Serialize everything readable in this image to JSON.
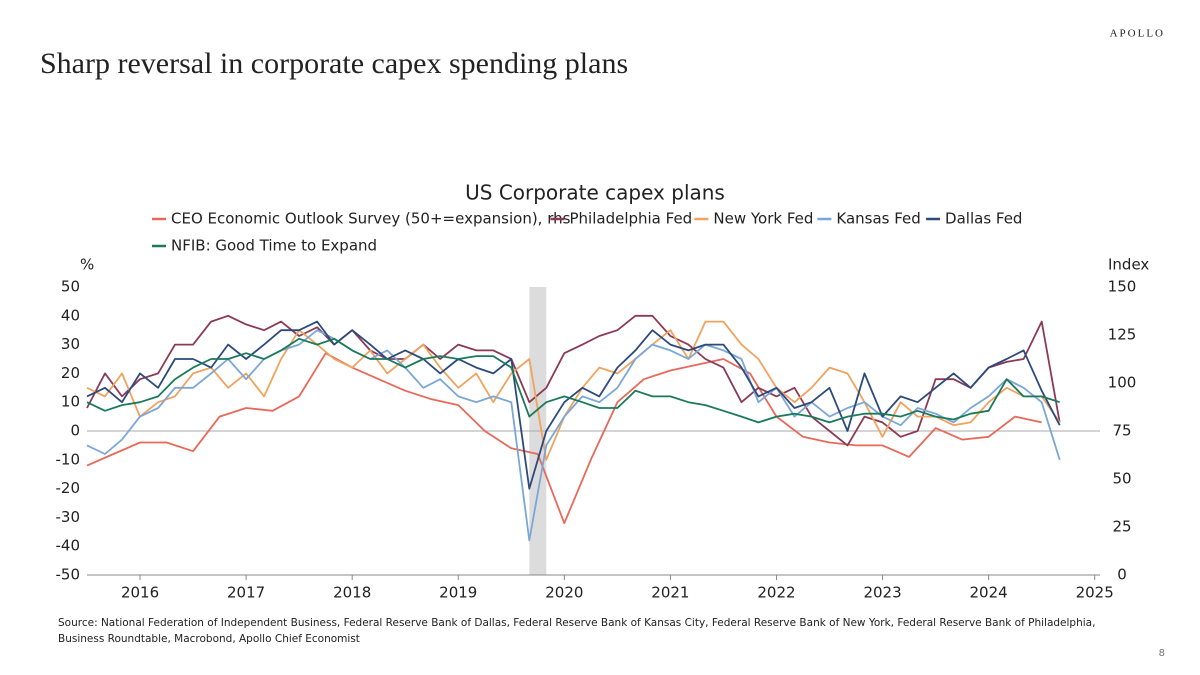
{
  "brand": "APOLLO",
  "page_title": "Sharp reversal in corporate capex spending plans",
  "source": "Source: National Federation of Independent Business, Federal Reserve Bank of Dallas, Federal Reserve Bank of Kansas City, Federal Reserve Bank of New York, Federal Reserve Bank of Philadelphia, Business Roundtable, Macrobond, Apollo Chief Economist",
  "page_number": "8",
  "chart_data": {
    "type": "line",
    "title": "US Corporate capex plans",
    "y_label": "%",
    "y2_label": "Index",
    "xlim": [
      2016,
      2025.55
    ],
    "xticks": [
      {
        "value": 2016.5,
        "label": "2016"
      },
      {
        "value": 2017.5,
        "label": "2017"
      },
      {
        "value": 2018.5,
        "label": "2018"
      },
      {
        "value": 2019.5,
        "label": "2019"
      },
      {
        "value": 2020.5,
        "label": "2020"
      },
      {
        "value": 2021.5,
        "label": "2021"
      },
      {
        "value": 2022.5,
        "label": "2022"
      },
      {
        "value": 2023.5,
        "label": "2023"
      },
      {
        "value": 2024.5,
        "label": "2024"
      },
      {
        "value": 2025.5,
        "label": "2025"
      }
    ],
    "ylim": [
      -50,
      50
    ],
    "yticks": [
      -50,
      -40,
      -30,
      -20,
      -10,
      0,
      10,
      20,
      30,
      40,
      50
    ],
    "y2lim": [
      0,
      150
    ],
    "y2ticks": [
      0,
      25,
      50,
      75,
      100,
      125,
      150
    ],
    "shaded_x": [
      2020.17,
      2020.33
    ],
    "x": [
      2016,
      2016.17,
      2016.33,
      2016.5,
      2016.67,
      2016.83,
      2017,
      2017.17,
      2017.33,
      2017.5,
      2017.67,
      2017.83,
      2018,
      2018.17,
      2018.33,
      2018.5,
      2018.67,
      2018.83,
      2019,
      2019.17,
      2019.33,
      2019.5,
      2019.67,
      2019.83,
      2020,
      2020.17,
      2020.33,
      2020.5,
      2020.67,
      2020.83,
      2021,
      2021.17,
      2021.33,
      2021.5,
      2021.67,
      2021.83,
      2022,
      2022.17,
      2022.33,
      2022.5,
      2022.67,
      2022.83,
      2023,
      2023.17,
      2023.33,
      2023.5,
      2023.67,
      2023.83,
      2024,
      2024.17,
      2024.33,
      2024.5,
      2024.67,
      2024.83,
      2025,
      2025.17
    ],
    "series": [
      {
        "name": "CEO Economic Outlook Survey (50+=expansion), rhs",
        "color": "#e8695a",
        "axis": "y2",
        "x": [
          2016,
          2016.25,
          2016.5,
          2016.75,
          2017,
          2017.25,
          2017.5,
          2017.75,
          2018,
          2018.25,
          2018.5,
          2018.75,
          2019,
          2019.25,
          2019.5,
          2019.75,
          2020,
          2020.25,
          2020.5,
          2020.75,
          2021,
          2021.25,
          2021.5,
          2021.75,
          2022,
          2022.25,
          2022.5,
          2022.75,
          2023,
          2023.25,
          2023.5,
          2023.75,
          2024,
          2024.25,
          2024.5,
          2024.75,
          2025
        ],
        "values": [
          57,
          63,
          69,
          69,
          64.5,
          82.5,
          87,
          85.5,
          93,
          115.5,
          108,
          102,
          96,
          91.5,
          88.5,
          75,
          66,
          63,
          27,
          60,
          90,
          102,
          106.5,
          109.5,
          112.5,
          105,
          82.5,
          72,
          69,
          67.5,
          67.5,
          61.5,
          76.5,
          70.5,
          72,
          82.5,
          79.5
        ]
      },
      {
        "name": "Philadelphia Fed",
        "color": "#8b3a55",
        "values": [
          8,
          20,
          12,
          18,
          20,
          30,
          30,
          38,
          40,
          37,
          35,
          38,
          33,
          36,
          30,
          35,
          28,
          25,
          25,
          30,
          25,
          30,
          28,
          28,
          25,
          10,
          15,
          27,
          30,
          33,
          35,
          40,
          40,
          33,
          30,
          25,
          22,
          10,
          15,
          12,
          15,
          5,
          0,
          -5,
          5,
          3,
          -2,
          0,
          18,
          18,
          15,
          22,
          24,
          25,
          38,
          3
        ]
      },
      {
        "name": "New York Fed",
        "color": "#f0a35e",
        "values": [
          15,
          12,
          20,
          5,
          10,
          12,
          20,
          22,
          15,
          20,
          12,
          25,
          35,
          30,
          25,
          22,
          28,
          20,
          25,
          30,
          22,
          15,
          20,
          10,
          20,
          25,
          -10,
          5,
          15,
          22,
          20,
          25,
          30,
          35,
          25,
          38,
          38,
          30,
          25,
          15,
          10,
          15,
          22,
          20,
          10,
          -2,
          10,
          5,
          5,
          2,
          3,
          10,
          15,
          12,
          12,
          3
        ]
      },
      {
        "name": "Kansas Fed",
        "color": "#7aa7d6",
        "values": [
          -5,
          -8,
          -3,
          5,
          8,
          15,
          15,
          20,
          25,
          18,
          25,
          28,
          30,
          35,
          32,
          28,
          25,
          28,
          22,
          15,
          18,
          12,
          10,
          12,
          10,
          -38,
          -5,
          5,
          12,
          10,
          15,
          25,
          30,
          28,
          25,
          30,
          28,
          25,
          10,
          15,
          5,
          10,
          5,
          8,
          10,
          5,
          2,
          8,
          6,
          3,
          8,
          12,
          18,
          15,
          10,
          -10
        ]
      },
      {
        "name": "Dallas Fed",
        "color": "#2c4a7c",
        "values": [
          12,
          15,
          10,
          20,
          15,
          25,
          25,
          22,
          30,
          25,
          30,
          35,
          35,
          38,
          30,
          35,
          30,
          25,
          28,
          25,
          20,
          25,
          22,
          20,
          25,
          -20,
          0,
          10,
          15,
          12,
          22,
          28,
          35,
          30,
          28,
          30,
          30,
          22,
          12,
          15,
          8,
          10,
          15,
          0,
          20,
          5,
          12,
          10,
          15,
          20,
          15,
          22,
          25,
          28,
          14,
          2
        ]
      },
      {
        "name": "NFIB: Good Time to Expand",
        "color": "#1a7a5a",
        "values": [
          10,
          7,
          9,
          10,
          12,
          18,
          22,
          25,
          25,
          27,
          25,
          28,
          32,
          30,
          32,
          28,
          25,
          25,
          22,
          25,
          26,
          25,
          26,
          26,
          22,
          5,
          10,
          12,
          10,
          8,
          8,
          14,
          12,
          12,
          10,
          9,
          7,
          5,
          3,
          5,
          6,
          5,
          3,
          5,
          6,
          6,
          5,
          7,
          5,
          4,
          6,
          7,
          18,
          12,
          12,
          10
        ]
      }
    ]
  }
}
